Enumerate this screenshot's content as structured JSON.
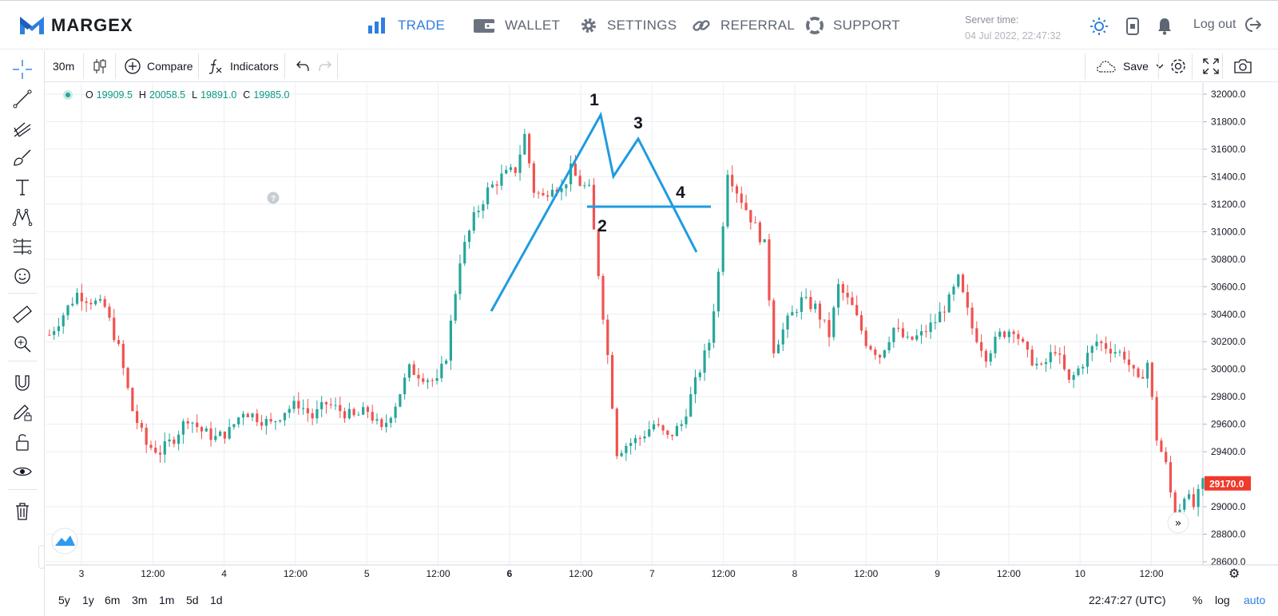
{
  "brand": {
    "name": "MARGEX",
    "color": "#2f7fe0"
  },
  "nav": [
    {
      "label": "TRADE",
      "icon": "bar-chart-icon",
      "active": true
    },
    {
      "label": "WALLET",
      "icon": "wallet-icon"
    },
    {
      "label": "SETTINGS",
      "icon": "gear-icon"
    },
    {
      "label": "REFERRAL",
      "icon": "link-icon"
    },
    {
      "label": "SUPPORT",
      "icon": "lifebuoy-icon"
    }
  ],
  "server_time": {
    "label": "Server time:",
    "value": "04 Jul 2022, 22:47:32"
  },
  "logout_label": "Log out",
  "toolbar": {
    "interval": "30m",
    "compare_label": "Compare",
    "indicators_label": "Indicators",
    "save_label": "Save"
  },
  "ohlc": {
    "o_label": "O",
    "o": "19909.5",
    "h_label": "H",
    "h": "20058.5",
    "l_label": "L",
    "l": "19891.0",
    "c_label": "C",
    "c": "19985.0"
  },
  "chart_data": {
    "type": "candlestick",
    "price_axis": {
      "min": 28600,
      "max": 32000,
      "ticks": [
        32000,
        31800,
        31600,
        31400,
        31200,
        31000,
        30800,
        30600,
        30400,
        30200,
        30000,
        29800,
        29600,
        29400,
        29000,
        28800,
        28600
      ],
      "tick_labels": [
        "32000.0",
        "31800.0",
        "31600.0",
        "31400.0",
        "31200.0",
        "31000.0",
        "30800.0",
        "30600.0",
        "30400.0",
        "30200.0",
        "30000.0",
        "29800.0",
        "29600.0",
        "29400.0",
        "29000.0",
        "28800.0",
        "28600.0"
      ]
    },
    "last_price": "29170.0",
    "time_axis_labels": [
      "3",
      "12:00",
      "4",
      "12:00",
      "5",
      "12:00",
      "6",
      "12:00",
      "7",
      "12:00",
      "8",
      "12:00",
      "9",
      "12:00",
      "10",
      "12:00"
    ],
    "close_path": [
      [
        0,
        30250
      ],
      [
        3,
        30400
      ],
      [
        6,
        30550
      ],
      [
        9,
        30500
      ],
      [
        12,
        30450
      ],
      [
        15,
        30150
      ],
      [
        18,
        29700
      ],
      [
        21,
        29450
      ],
      [
        24,
        29400
      ],
      [
        27,
        29500
      ],
      [
        30,
        29650
      ],
      [
        33,
        29550
      ],
      [
        36,
        29500
      ],
      [
        39,
        29550
      ],
      [
        42,
        29700
      ],
      [
        45,
        29650
      ],
      [
        48,
        29600
      ],
      [
        51,
        29700
      ],
      [
        54,
        29750
      ],
      [
        57,
        29650
      ],
      [
        60,
        29750
      ],
      [
        63,
        29700
      ],
      [
        66,
        29650
      ],
      [
        69,
        29700
      ],
      [
        72,
        29550
      ],
      [
        75,
        29750
      ],
      [
        78,
        30000
      ],
      [
        81,
        29950
      ],
      [
        84,
        29900
      ],
      [
        86,
        30100
      ],
      [
        89,
        30800
      ],
      [
        92,
        31100
      ],
      [
        95,
        31300
      ],
      [
        98,
        31400
      ],
      [
        101,
        31450
      ],
      [
        103,
        31700
      ],
      [
        105,
        31300
      ],
      [
        107,
        31250
      ],
      [
        109,
        31350
      ],
      [
        111,
        31300
      ],
      [
        113,
        31450
      ],
      [
        115,
        31350
      ],
      [
        117,
        31300
      ],
      [
        119,
        30700
      ],
      [
        121,
        30100
      ],
      [
        123,
        29400
      ],
      [
        125,
        29450
      ],
      [
        128,
        29500
      ],
      [
        131,
        29600
      ],
      [
        134,
        29500
      ],
      [
        137,
        29600
      ],
      [
        140,
        29900
      ],
      [
        143,
        30200
      ],
      [
        145,
        30700
      ],
      [
        147,
        31450
      ],
      [
        149,
        31300
      ],
      [
        152,
        31100
      ],
      [
        155,
        30900
      ],
      [
        157,
        30150
      ],
      [
        160,
        30350
      ],
      [
        163,
        30500
      ],
      [
        166,
        30450
      ],
      [
        169,
        30250
      ],
      [
        171,
        30600
      ],
      [
        174,
        30450
      ],
      [
        177,
        30200
      ],
      [
        180,
        30100
      ],
      [
        183,
        30300
      ],
      [
        186,
        30200
      ],
      [
        189,
        30250
      ],
      [
        192,
        30350
      ],
      [
        195,
        30500
      ],
      [
        197,
        30650
      ],
      [
        200,
        30300
      ],
      [
        203,
        30100
      ],
      [
        206,
        30250
      ],
      [
        209,
        30300
      ],
      [
        212,
        30100
      ],
      [
        215,
        30000
      ],
      [
        218,
        30150
      ],
      [
        221,
        29900
      ],
      [
        224,
        30050
      ],
      [
        227,
        30200
      ],
      [
        230,
        30150
      ],
      [
        233,
        30100
      ],
      [
        236,
        29900
      ],
      [
        238,
        30050
      ],
      [
        240,
        29500
      ],
      [
        242,
        29300
      ],
      [
        244,
        28900
      ],
      [
        246,
        29100
      ],
      [
        248,
        29000
      ],
      [
        250,
        29170
      ]
    ],
    "annotations": {
      "labels": [
        "1",
        "2",
        "3",
        "4"
      ]
    }
  }
}
